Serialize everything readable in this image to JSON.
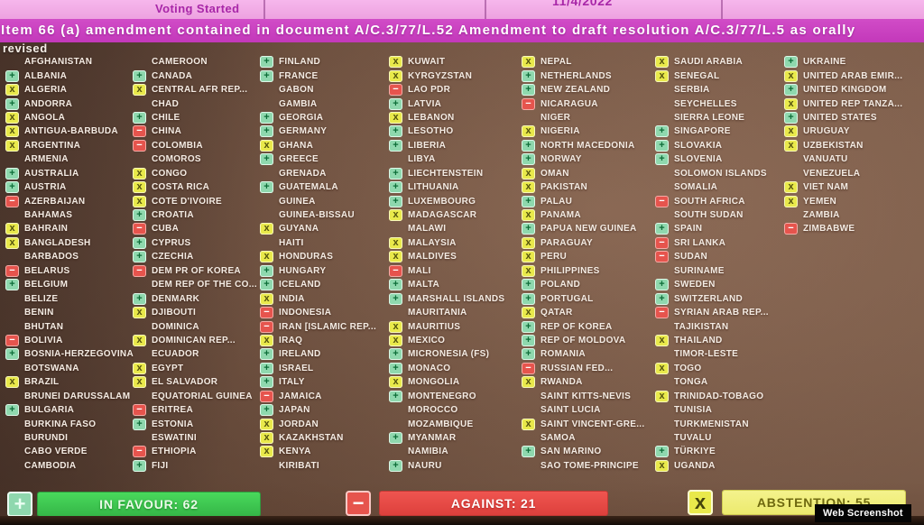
{
  "header": {
    "status": "Voting Started",
    "date": "11/4/2022",
    "title": "Item 66 (a) amendment contained in document A/C.3/77/L.52 Amendment to draft resolution A/C.3/77/L.5 as orally",
    "title_continuation": "revised"
  },
  "summary": {
    "in_favour": "IN FAVOUR: 62",
    "against": "AGAINST: 21",
    "abstention": "ABSTENTION: 55",
    "in_favour_count": 62,
    "against_count": 21,
    "abstention_count": 55
  },
  "watermark": "Web Screenshot",
  "colors": {
    "in_favour_icon": "#8fd8ae",
    "against_icon": "#e6544d",
    "abstention_icon": "#e9e94b",
    "favour_bar": "#3db84a",
    "against_bar": "#e64743",
    "abstention_bar": "#eeec75",
    "header_pink": "#eda2e0",
    "banner_magenta": "#c73ec4",
    "screen_brown": "#7c5a46"
  },
  "board": {
    "symbols": {
      "Y": "+",
      "N": "−",
      "A": "x"
    },
    "columns": [
      [
        {
          "n": "AFGHANISTAN",
          "v": ""
        },
        {
          "n": "ALBANIA",
          "v": "Y"
        },
        {
          "n": "ALGERIA",
          "v": "A"
        },
        {
          "n": "ANDORRA",
          "v": "Y"
        },
        {
          "n": "ANGOLA",
          "v": "A"
        },
        {
          "n": "ANTIGUA-BARBUDA",
          "v": "A"
        },
        {
          "n": "ARGENTINA",
          "v": "A"
        },
        {
          "n": "ARMENIA",
          "v": ""
        },
        {
          "n": "AUSTRALIA",
          "v": "Y"
        },
        {
          "n": "AUSTRIA",
          "v": "Y"
        },
        {
          "n": "AZERBAIJAN",
          "v": "N"
        },
        {
          "n": "BAHAMAS",
          "v": ""
        },
        {
          "n": "BAHRAIN",
          "v": "A"
        },
        {
          "n": "BANGLADESH",
          "v": "A"
        },
        {
          "n": "BARBADOS",
          "v": ""
        },
        {
          "n": "BELARUS",
          "v": "N"
        },
        {
          "n": "BELGIUM",
          "v": "Y"
        },
        {
          "n": "BELIZE",
          "v": ""
        },
        {
          "n": "BENIN",
          "v": ""
        },
        {
          "n": "BHUTAN",
          "v": ""
        },
        {
          "n": "BOLIVIA",
          "v": "N"
        },
        {
          "n": "BOSNIA-HERZEGOVINA",
          "v": "Y"
        },
        {
          "n": "BOTSWANA",
          "v": ""
        },
        {
          "n": "BRAZIL",
          "v": "A"
        },
        {
          "n": "BRUNEI DARUSSALAM",
          "v": ""
        },
        {
          "n": "BULGARIA",
          "v": "Y"
        },
        {
          "n": "BURKINA FASO",
          "v": ""
        },
        {
          "n": "BURUNDI",
          "v": ""
        },
        {
          "n": "CABO VERDE",
          "v": ""
        },
        {
          "n": "CAMBODIA",
          "v": ""
        }
      ],
      [
        {
          "n": "CAMEROON",
          "v": ""
        },
        {
          "n": "CANADA",
          "v": "Y"
        },
        {
          "n": "CENTRAL AFR REP...",
          "v": "A"
        },
        {
          "n": "CHAD",
          "v": ""
        },
        {
          "n": "CHILE",
          "v": "Y"
        },
        {
          "n": "CHINA",
          "v": "N"
        },
        {
          "n": "COLOMBIA",
          "v": "N"
        },
        {
          "n": "COMOROS",
          "v": ""
        },
        {
          "n": "CONGO",
          "v": "A"
        },
        {
          "n": "COSTA RICA",
          "v": "A"
        },
        {
          "n": "COTE D'IVOIRE",
          "v": "A"
        },
        {
          "n": "CROATIA",
          "v": "Y"
        },
        {
          "n": "CUBA",
          "v": "N"
        },
        {
          "n": "CYPRUS",
          "v": "Y"
        },
        {
          "n": "CZECHIA",
          "v": "Y"
        },
        {
          "n": "DEM PR OF KOREA",
          "v": "N"
        },
        {
          "n": "DEM REP OF THE CO...",
          "v": ""
        },
        {
          "n": "DENMARK",
          "v": "Y"
        },
        {
          "n": "DJIBOUTI",
          "v": "A"
        },
        {
          "n": "DOMINICA",
          "v": ""
        },
        {
          "n": "DOMINICAN REP...",
          "v": "A"
        },
        {
          "n": "ECUADOR",
          "v": ""
        },
        {
          "n": "EGYPT",
          "v": "A"
        },
        {
          "n": "EL SALVADOR",
          "v": "A"
        },
        {
          "n": "EQUATORIAL GUINEA",
          "v": ""
        },
        {
          "n": "ERITREA",
          "v": "N"
        },
        {
          "n": "ESTONIA",
          "v": "Y"
        },
        {
          "n": "ESWATINI",
          "v": ""
        },
        {
          "n": "ETHIOPIA",
          "v": "N"
        },
        {
          "n": "FIJI",
          "v": "Y"
        }
      ],
      [
        {
          "n": "FINLAND",
          "v": "Y"
        },
        {
          "n": "FRANCE",
          "v": "Y"
        },
        {
          "n": "GABON",
          "v": ""
        },
        {
          "n": "GAMBIA",
          "v": ""
        },
        {
          "n": "GEORGIA",
          "v": "Y"
        },
        {
          "n": "GERMANY",
          "v": "Y"
        },
        {
          "n": "GHANA",
          "v": "A"
        },
        {
          "n": "GREECE",
          "v": "Y"
        },
        {
          "n": "GRENADA",
          "v": ""
        },
        {
          "n": "GUATEMALA",
          "v": "Y"
        },
        {
          "n": "GUINEA",
          "v": ""
        },
        {
          "n": "GUINEA-BISSAU",
          "v": ""
        },
        {
          "n": "GUYANA",
          "v": "A"
        },
        {
          "n": "HAITI",
          "v": ""
        },
        {
          "n": "HONDURAS",
          "v": "A"
        },
        {
          "n": "HUNGARY",
          "v": "Y"
        },
        {
          "n": "ICELAND",
          "v": "Y"
        },
        {
          "n": "INDIA",
          "v": "A"
        },
        {
          "n": "INDONESIA",
          "v": "N"
        },
        {
          "n": "IRAN [ISLAMIC REP...",
          "v": "N"
        },
        {
          "n": "IRAQ",
          "v": "A"
        },
        {
          "n": "IRELAND",
          "v": "Y"
        },
        {
          "n": "ISRAEL",
          "v": "Y"
        },
        {
          "n": "ITALY",
          "v": "Y"
        },
        {
          "n": "JAMAICA",
          "v": "N"
        },
        {
          "n": "JAPAN",
          "v": "Y"
        },
        {
          "n": "JORDAN",
          "v": "A"
        },
        {
          "n": "KAZAKHSTAN",
          "v": "A"
        },
        {
          "n": "KENYA",
          "v": "A"
        },
        {
          "n": "KIRIBATI",
          "v": ""
        }
      ],
      [
        {
          "n": "KUWAIT",
          "v": "A"
        },
        {
          "n": "KYRGYZSTAN",
          "v": "A"
        },
        {
          "n": "LAO PDR",
          "v": "N"
        },
        {
          "n": "LATVIA",
          "v": "Y"
        },
        {
          "n": "LEBANON",
          "v": "A"
        },
        {
          "n": "LESOTHO",
          "v": "Y"
        },
        {
          "n": "LIBERIA",
          "v": "Y"
        },
        {
          "n": "LIBYA",
          "v": ""
        },
        {
          "n": "LIECHTENSTEIN",
          "v": "Y"
        },
        {
          "n": "LITHUANIA",
          "v": "Y"
        },
        {
          "n": "LUXEMBOURG",
          "v": "Y"
        },
        {
          "n": "MADAGASCAR",
          "v": "A"
        },
        {
          "n": "MALAWI",
          "v": ""
        },
        {
          "n": "MALAYSIA",
          "v": "A"
        },
        {
          "n": "MALDIVES",
          "v": "A"
        },
        {
          "n": "MALI",
          "v": "N"
        },
        {
          "n": "MALTA",
          "v": "Y"
        },
        {
          "n": "MARSHALL ISLANDS",
          "v": "Y"
        },
        {
          "n": "MAURITANIA",
          "v": ""
        },
        {
          "n": "MAURITIUS",
          "v": "A"
        },
        {
          "n": "MEXICO",
          "v": "A"
        },
        {
          "n": "MICRONESIA (FS)",
          "v": "Y"
        },
        {
          "n": "MONACO",
          "v": "Y"
        },
        {
          "n": "MONGOLIA",
          "v": "A"
        },
        {
          "n": "MONTENEGRO",
          "v": "Y"
        },
        {
          "n": "MOROCCO",
          "v": ""
        },
        {
          "n": "MOZAMBIQUE",
          "v": ""
        },
        {
          "n": "MYANMAR",
          "v": "Y"
        },
        {
          "n": "NAMIBIA",
          "v": ""
        },
        {
          "n": "NAURU",
          "v": "Y"
        }
      ],
      [
        {
          "n": "NEPAL",
          "v": "A"
        },
        {
          "n": "NETHERLANDS",
          "v": "Y"
        },
        {
          "n": "NEW ZEALAND",
          "v": "Y"
        },
        {
          "n": "NICARAGUA",
          "v": "N"
        },
        {
          "n": "NIGER",
          "v": ""
        },
        {
          "n": "NIGERIA",
          "v": "A"
        },
        {
          "n": "NORTH MACEDONIA",
          "v": "Y"
        },
        {
          "n": "NORWAY",
          "v": "Y"
        },
        {
          "n": "OMAN",
          "v": "A"
        },
        {
          "n": "PAKISTAN",
          "v": "A"
        },
        {
          "n": "PALAU",
          "v": "Y"
        },
        {
          "n": "PANAMA",
          "v": "A"
        },
        {
          "n": "PAPUA NEW GUINEA",
          "v": "Y"
        },
        {
          "n": "PARAGUAY",
          "v": "A"
        },
        {
          "n": "PERU",
          "v": "A"
        },
        {
          "n": "PHILIPPINES",
          "v": "A"
        },
        {
          "n": "POLAND",
          "v": "Y"
        },
        {
          "n": "PORTUGAL",
          "v": "Y"
        },
        {
          "n": "QATAR",
          "v": "A"
        },
        {
          "n": "REP OF KOREA",
          "v": "Y"
        },
        {
          "n": "REP OF MOLDOVA",
          "v": "Y"
        },
        {
          "n": "ROMANIA",
          "v": "Y"
        },
        {
          "n": "RUSSIAN FED...",
          "v": "N"
        },
        {
          "n": "RWANDA",
          "v": "A"
        },
        {
          "n": "SAINT KITTS-NEVIS",
          "v": ""
        },
        {
          "n": "SAINT LUCIA",
          "v": ""
        },
        {
          "n": "SAINT VINCENT-GRE...",
          "v": "A"
        },
        {
          "n": "SAMOA",
          "v": ""
        },
        {
          "n": "SAN MARINO",
          "v": "Y"
        },
        {
          "n": "SAO TOME-PRINCIPE",
          "v": ""
        }
      ],
      [
        {
          "n": "SAUDI ARABIA",
          "v": "A"
        },
        {
          "n": "SENEGAL",
          "v": "A"
        },
        {
          "n": "SERBIA",
          "v": ""
        },
        {
          "n": "SEYCHELLES",
          "v": ""
        },
        {
          "n": "SIERRA LEONE",
          "v": ""
        },
        {
          "n": "SINGAPORE",
          "v": "Y"
        },
        {
          "n": "SLOVAKIA",
          "v": "Y"
        },
        {
          "n": "SLOVENIA",
          "v": "Y"
        },
        {
          "n": "SOLOMON ISLANDS",
          "v": ""
        },
        {
          "n": "SOMALIA",
          "v": ""
        },
        {
          "n": "SOUTH AFRICA",
          "v": "N"
        },
        {
          "n": "SOUTH SUDAN",
          "v": ""
        },
        {
          "n": "SPAIN",
          "v": "Y"
        },
        {
          "n": "SRI LANKA",
          "v": "N"
        },
        {
          "n": "SUDAN",
          "v": "N"
        },
        {
          "n": "SURINAME",
          "v": ""
        },
        {
          "n": "SWEDEN",
          "v": "Y"
        },
        {
          "n": "SWITZERLAND",
          "v": "Y"
        },
        {
          "n": "SYRIAN ARAB REP...",
          "v": "N"
        },
        {
          "n": "TAJIKISTAN",
          "v": ""
        },
        {
          "n": "THAILAND",
          "v": "A"
        },
        {
          "n": "TIMOR-LESTE",
          "v": ""
        },
        {
          "n": "TOGO",
          "v": "A"
        },
        {
          "n": "TONGA",
          "v": ""
        },
        {
          "n": "TRINIDAD-TOBAGO",
          "v": "A"
        },
        {
          "n": "TUNISIA",
          "v": ""
        },
        {
          "n": "TURKMENISTAN",
          "v": ""
        },
        {
          "n": "TUVALU",
          "v": ""
        },
        {
          "n": "TÜRKIYE",
          "v": "Y"
        },
        {
          "n": "UGANDA",
          "v": "A"
        }
      ],
      [
        {
          "n": "UKRAINE",
          "v": "Y"
        },
        {
          "n": "UNITED ARAB EMIR...",
          "v": "A"
        },
        {
          "n": "UNITED KINGDOM",
          "v": "Y"
        },
        {
          "n": "UNITED REP TANZA...",
          "v": "A"
        },
        {
          "n": "UNITED STATES",
          "v": "Y"
        },
        {
          "n": "URUGUAY",
          "v": "A"
        },
        {
          "n": "UZBEKISTAN",
          "v": "A"
        },
        {
          "n": "VANUATU",
          "v": ""
        },
        {
          "n": "VENEZUELA",
          "v": ""
        },
        {
          "n": "VIET NAM",
          "v": "A"
        },
        {
          "n": "YEMEN",
          "v": "A"
        },
        {
          "n": "ZAMBIA",
          "v": ""
        },
        {
          "n": "ZIMBABWE",
          "v": "N"
        }
      ]
    ]
  }
}
